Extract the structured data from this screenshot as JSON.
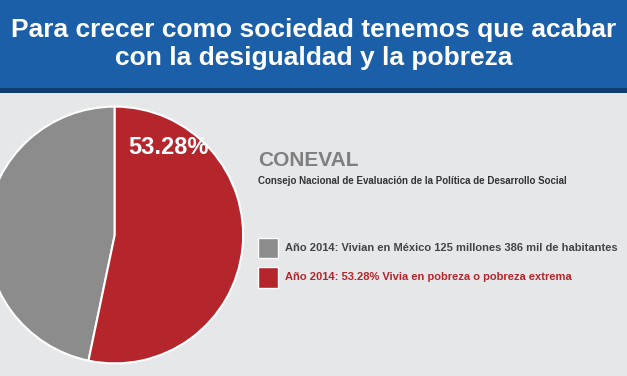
{
  "chart_data": {
    "type": "pie",
    "title": "Para crecer como sociedad tenemos que acabar con la desigualdad y la pobreza",
    "annotations": [
      "CONEVAL",
      "Consejo Nacional de Evaluación de la Política de Desarrollo Social"
    ],
    "categories": [
      "Año 2014: Vivian en México 125 millones 386 mil de habitantes",
      "Año 2014: 53.28% Vivia en pobreza o pobreza extrema"
    ],
    "values": [
      46.72,
      53.28
    ],
    "value_labels": [
      null,
      "53.28%"
    ],
    "data_labels": true,
    "colors": [
      "#8c8c8c",
      "#b5252c"
    ]
  }
}
